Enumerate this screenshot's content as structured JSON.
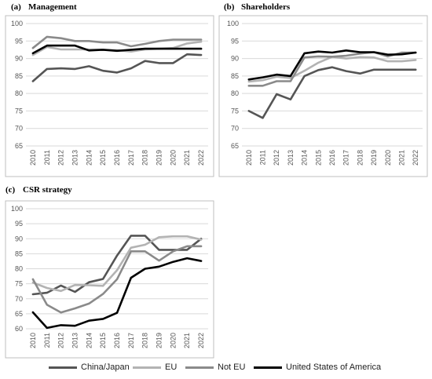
{
  "chart_data": [
    {
      "type": "line",
      "title": "(a)\tManagement",
      "x": [
        "2010",
        "2011",
        "2012",
        "2013",
        "2014",
        "2015",
        "2016",
        "2017",
        "2018",
        "2019",
        "2020",
        "2021",
        "2022"
      ],
      "ylim": [
        65,
        100
      ],
      "yticks": [
        65,
        70,
        75,
        80,
        85,
        90,
        95,
        100
      ],
      "grid": true,
      "series": [
        {
          "name": "China/Japan",
          "color": "#555555",
          "values": [
            83.5,
            87,
            87.2,
            87,
            87.8,
            86.5,
            86,
            87.2,
            89.3,
            88.7,
            88.7,
            91.2,
            91
          ]
        },
        {
          "name": "EU",
          "color": "#b3b3b3",
          "values": [
            91,
            93.3,
            92.6,
            92.6,
            92.6,
            92.5,
            92.4,
            92,
            92.6,
            92.8,
            93,
            94.3,
            94.8
          ]
        },
        {
          "name": "Not EU",
          "color": "#8a8a8a",
          "values": [
            93,
            96.2,
            95.8,
            95,
            95,
            94.6,
            94.6,
            93.5,
            94.2,
            95,
            95.4,
            95.4,
            95.4
          ]
        },
        {
          "name": "United States of America",
          "color": "#000000",
          "values": [
            91.5,
            93.7,
            93.7,
            93.7,
            92.3,
            92.5,
            92.2,
            92.5,
            92.8,
            92.8,
            92.8,
            92.8,
            92.8
          ]
        }
      ]
    },
    {
      "type": "line",
      "title": "(b)\tShareholders",
      "x": [
        "2010",
        "2011",
        "2012",
        "2013",
        "2014",
        "2015",
        "2016",
        "2017",
        "2018",
        "2019",
        "2020",
        "2021",
        "2022"
      ],
      "ylim": [
        65,
        100
      ],
      "yticks": [
        65,
        70,
        75,
        80,
        85,
        90,
        95,
        100
      ],
      "grid": true,
      "series": [
        {
          "name": "China/Japan",
          "color": "#555555",
          "values": [
            75,
            73,
            79.8,
            78.3,
            85,
            86.7,
            87.5,
            86.4,
            85.7,
            86.8,
            86.8,
            86.8,
            86.8
          ]
        },
        {
          "name": "EU",
          "color": "#b3b3b3",
          "values": [
            83.4,
            83.8,
            84.8,
            84.4,
            86.5,
            88.8,
            90.5,
            90,
            90.4,
            90.3,
            89.2,
            89.2,
            89.6
          ]
        },
        {
          "name": "Not EU",
          "color": "#8a8a8a",
          "values": [
            82.2,
            82.2,
            83.5,
            83.5,
            90.3,
            90.6,
            90.5,
            90.8,
            91.4,
            91.8,
            90.6,
            91.7,
            91.7
          ]
        },
        {
          "name": "United States of America",
          "color": "#000000",
          "values": [
            84,
            84.6,
            85.4,
            85,
            91.5,
            92,
            91.7,
            92.3,
            91.8,
            91.8,
            91.1,
            91.2,
            91.7
          ]
        }
      ]
    },
    {
      "type": "line",
      "title": "(c)\tCSR strategy",
      "x": [
        "2010",
        "2011",
        "2012",
        "2013",
        "2014",
        "2015",
        "2016",
        "2017",
        "2018",
        "2019",
        "2020",
        "2021",
        "2022"
      ],
      "ylim": [
        60,
        100
      ],
      "yticks": [
        60,
        65,
        70,
        75,
        80,
        85,
        90,
        95,
        100
      ],
      "grid": true,
      "series": [
        {
          "name": "China/Japan",
          "color": "#555555",
          "values": [
            71.5,
            72,
            74.4,
            72.3,
            75.5,
            76.6,
            84.4,
            91,
            91,
            86.3,
            86.3,
            86.3,
            90
          ]
        },
        {
          "name": "EU",
          "color": "#b3b3b3",
          "values": [
            75.4,
            73.6,
            72.6,
            74.6,
            74.5,
            74.3,
            79.5,
            87,
            88,
            90.5,
            90.8,
            90.8,
            89.7
          ]
        },
        {
          "name": "Not EU",
          "color": "#8a8a8a",
          "values": [
            76.5,
            68,
            65.4,
            66.8,
            68.4,
            71.6,
            76.5,
            85.8,
            85.8,
            82.7,
            85.8,
            87.5,
            87.5
          ]
        },
        {
          "name": "United States of America",
          "color": "#000000",
          "values": [
            65.5,
            60.3,
            61.2,
            61,
            62.7,
            63.3,
            65.3,
            77,
            80,
            80.7,
            82.3,
            83.5,
            82.6
          ]
        }
      ]
    }
  ],
  "legend": [
    {
      "name": "China/Japan",
      "color": "#555555"
    },
    {
      "name": "EU",
      "color": "#b3b3b3"
    },
    {
      "name": "Not EU",
      "color": "#8a8a8a"
    },
    {
      "name": "United States of America",
      "color": "#000000"
    }
  ]
}
